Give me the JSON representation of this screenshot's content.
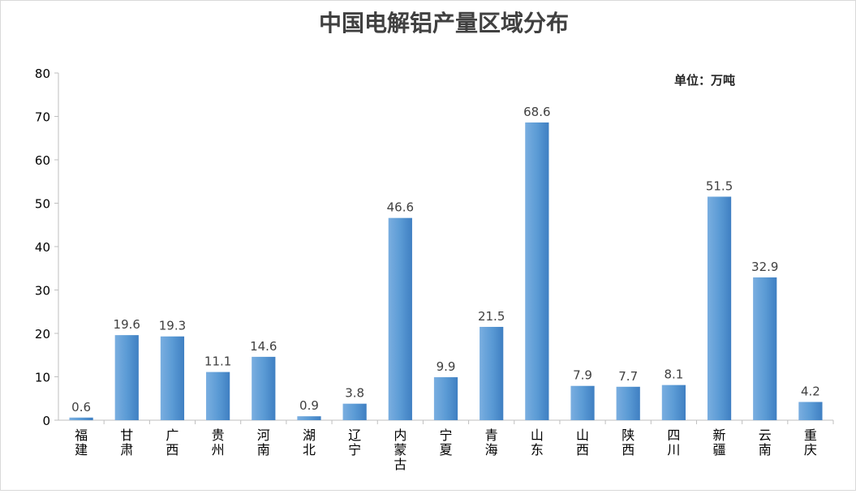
{
  "chart_data": {
    "type": "bar",
    "title": "中国电解铝产量区域分布",
    "unit_label": "单位：万吨",
    "categories": [
      "福建",
      "甘肃",
      "广西",
      "贵州",
      "河南",
      "湖北",
      "辽宁",
      "内蒙古",
      "宁夏",
      "青海",
      "山东",
      "山西",
      "陕西",
      "四川",
      "新疆",
      "云南",
      "重庆"
    ],
    "values": [
      0.6,
      19.6,
      19.3,
      11.1,
      14.6,
      0.9,
      3.8,
      46.6,
      9.9,
      21.5,
      68.6,
      7.9,
      7.7,
      8.1,
      51.5,
      32.9,
      4.2
    ],
    "value_labels": [
      "0.6",
      "19.6",
      "19.3",
      "11.1",
      "14.6",
      "0.9",
      "3.8",
      "46.6",
      "9.9",
      "21.5",
      "68.6",
      "7.9",
      "7.7",
      "8.1",
      "51.5",
      "32.9",
      "4.2"
    ],
    "ylim": [
      0,
      80
    ],
    "yticks": [
      "0",
      "10",
      "20",
      "30",
      "40",
      "50",
      "60",
      "70",
      "80"
    ],
    "grid": false,
    "colors": {
      "bar_light": "#7aaee0",
      "bar_mid": "#5b9bd5",
      "bar_dark": "#3f7fc2",
      "axis": "#bfbfbf",
      "title": "#404040",
      "text": "#404040",
      "tick_text": "#000000"
    }
  }
}
